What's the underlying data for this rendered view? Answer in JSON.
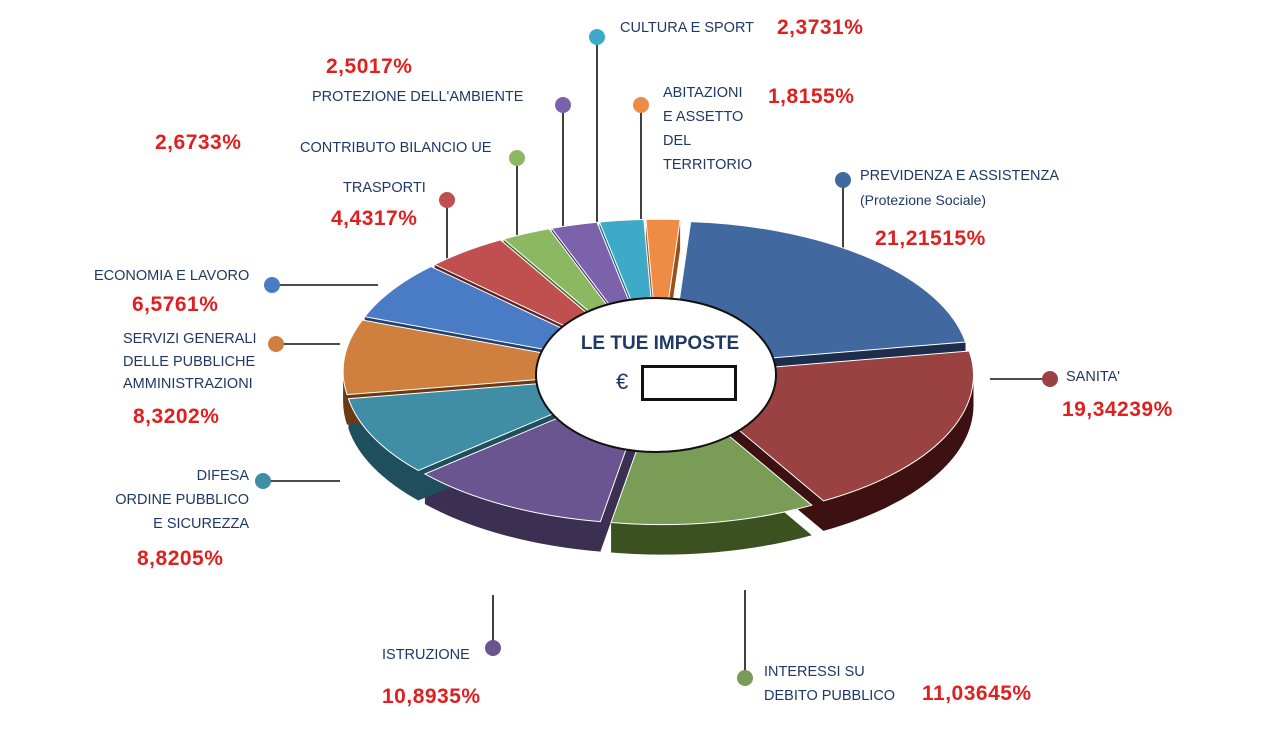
{
  "center": {
    "title": "LE TUE IMPOSTE",
    "currency": "€",
    "amount": ""
  },
  "labels": {
    "previdenza_1": "PREVIDENZA E ASSISTENZA",
    "previdenza_2": "(Protezione Sociale)",
    "sanita": "SANITA'",
    "interessi_1": "INTERESSI SU",
    "interessi_2": "DEBITO PUBBLICO",
    "istruzione": "ISTRUZIONE",
    "difesa_1": "DIFESA",
    "difesa_2": "ORDINE PUBBLICO",
    "difesa_3": "E SICUREZZA",
    "servizi_1": "SERVIZI GENERALI",
    "servizi_2": "DELLE PUBBLICHE",
    "servizi_3": "AMMINISTRAZIONI",
    "economia": "ECONOMIA E LAVORO",
    "trasporti": "TRASPORTI",
    "contributo": "CONTRIBUTO BILANCIO UE",
    "ambiente": "PROTEZIONE DELL'AMBIENTE",
    "cultura": "CULTURA E SPORT",
    "abitazioni_1": "ABITAZIONI",
    "abitazioni_2": "E ASSETTO",
    "abitazioni_3": "DEL",
    "abitazioni_4": "TERRITORIO"
  },
  "percentages": {
    "previdenza": "21,21515%",
    "sanita": "19,34239%",
    "interessi": "11,03645%",
    "istruzione": "10,8935%",
    "difesa": "8,8205%",
    "servizi": "8,3202%",
    "economia": "6,5761%",
    "trasporti": "4,4317%",
    "contributo": "2,6733%",
    "ambiente": "2,5017%",
    "cultura": "2,3731%",
    "abitazioni": "1,8155%"
  },
  "chart_data": {
    "type": "pie",
    "style": "3d-exploded-donut",
    "title": "",
    "categories": [
      "PREVIDENZA E ASSISTENZA (Protezione Sociale)",
      "SANITA'",
      "INTERESSI SU DEBITO PUBBLICO",
      "ISTRUZIONE",
      "DIFESA ORDINE PUBBLICO E SICUREZZA",
      "SERVIZI GENERALI DELLE PUBBLICHE AMMINISTRAZIONI",
      "ECONOMIA E LAVORO",
      "TRASPORTI",
      "CONTRIBUTO BILANCIO UE",
      "PROTEZIONE DELL'AMBIENTE",
      "CULTURA E SPORT",
      "ABITAZIONI E ASSETTO DEL TERRITORIO"
    ],
    "values": [
      21.21515,
      19.34239,
      11.03645,
      10.8935,
      8.8205,
      8.3202,
      6.5761,
      4.4317,
      2.6733,
      2.5017,
      2.3731,
      1.8155
    ],
    "colors": [
      "#41689f",
      "#9a4141",
      "#799c57",
      "#6a5590",
      "#3f8ea5",
      "#d0803e",
      "#4a7bc5",
      "#c04f4f",
      "#8cb862",
      "#7b62aa",
      "#3daac8",
      "#ee8c45"
    ],
    "dark_colors": [
      "#1c2e4c",
      "#3d1111",
      "#3b5220",
      "#3b2f52",
      "#1f4f5c",
      "#6b3a12",
      "#22406e",
      "#5e2424",
      "#4f6b33",
      "#43336a",
      "#1f6a80",
      "#9a5018"
    ]
  }
}
